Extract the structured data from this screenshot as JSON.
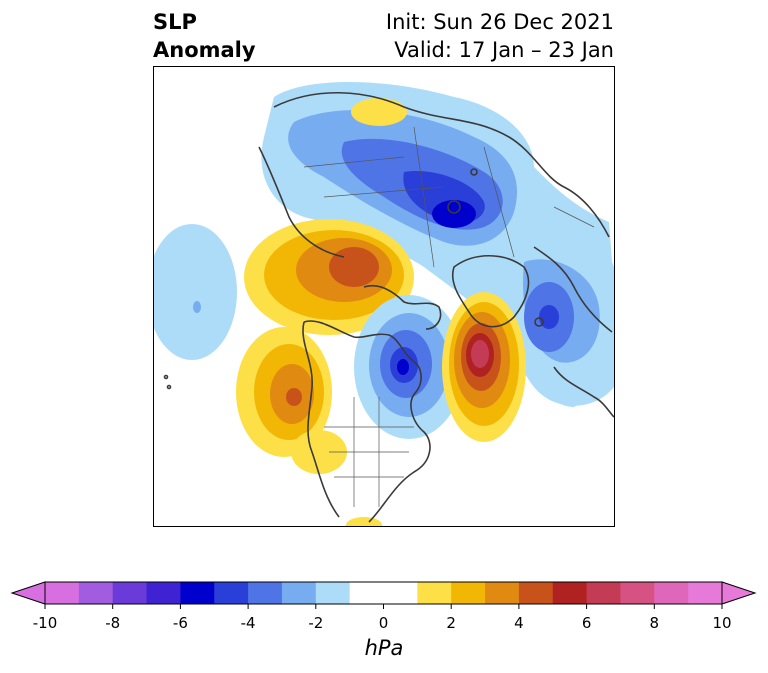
{
  "title": {
    "left_line1": "SLP",
    "left_line2": "Anomaly",
    "right_line1": "Init: Sun 26 Dec 2021",
    "right_line2": "Valid: 17 Jan – 23 Jan"
  },
  "colorbar": {
    "unit": "hPa",
    "ticks": [
      "-10",
      "-8",
      "-6",
      "-4",
      "-2",
      "0",
      "2",
      "4",
      "6",
      "8",
      "10"
    ],
    "range": [
      -10,
      10
    ],
    "extend": "both",
    "colors": [
      "#d86fe0",
      "#a15ce0",
      "#6a3bd9",
      "#3f22d2",
      "#0000cc",
      "#2a3ed8",
      "#4e74e6",
      "#78acf0",
      "#addcf9",
      "#ffffff",
      "#ffffff",
      "#fde047",
      "#f2b705",
      "#e08a12",
      "#c8531a",
      "#b02222",
      "#c33b55",
      "#d65282",
      "#df67b9",
      "#e77ad8"
    ]
  },
  "map": {
    "projection": "north-polar stereographic",
    "features": [
      {
        "name": "negative anomaly over Siberia/Arctic",
        "sign": "negative",
        "peak_hPa": -6
      },
      {
        "name": "negative anomaly over Hudson Bay",
        "sign": "negative",
        "peak_hPa": -6
      },
      {
        "name": "negative anomaly over Scandinavia",
        "sign": "negative",
        "peak_hPa": -5
      },
      {
        "name": "positive anomaly over Greenland/North Atlantic",
        "sign": "positive",
        "peak_hPa": 6
      },
      {
        "name": "positive anomaly over Bering/Alaska",
        "sign": "positive",
        "peak_hPa": 4
      },
      {
        "name": "positive anomaly over NE Pacific",
        "sign": "positive",
        "peak_hPa": 4
      },
      {
        "name": "negative anomaly over central Pacific",
        "sign": "negative",
        "peak_hPa": -2
      }
    ]
  }
}
